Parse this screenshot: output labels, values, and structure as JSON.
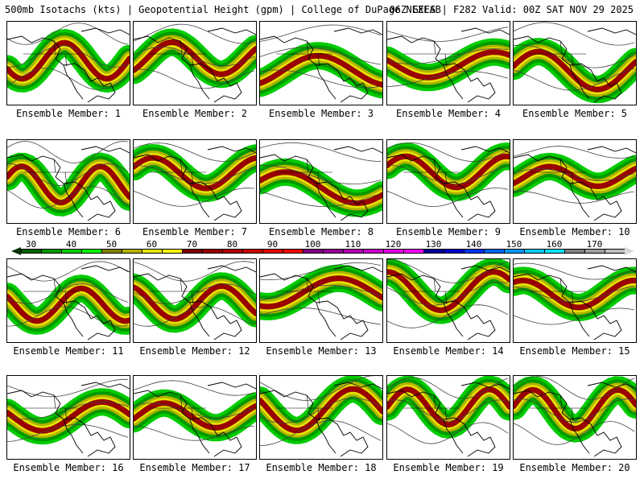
{
  "header": {
    "left_text": "500mb Isotachs (kts) | Geopotential Height (gpm) | College of DuPage NEXLAB",
    "right_text": "06Z GEFS | F282 Valid: 00Z SAT NOV 29 2025"
  },
  "colorbar": {
    "labels": [
      "30",
      "40",
      "50",
      "60",
      "70",
      "80",
      "90",
      "100",
      "110",
      "120",
      "130",
      "140",
      "150",
      "160",
      "170"
    ],
    "colors": [
      "#006400",
      "#009900",
      "#00cc00",
      "#00ff00",
      "#808000",
      "#b3b300",
      "#e6e600",
      "#ffff00",
      "#800000",
      "#990000",
      "#b30000",
      "#cc0000",
      "#e60000",
      "#ff0000",
      "#800080",
      "#990099",
      "#b300b3",
      "#cc00cc",
      "#e600e6",
      "#ff00ff",
      "#000099",
      "#0000cc",
      "#0033ff",
      "#0066ff",
      "#0099ff",
      "#00ccff",
      "#00e6ff",
      "#808080",
      "#a0a0a0",
      "#c0c0c0"
    ],
    "start_tip_color": "#003300",
    "end_tip_color": "#d8d8d8"
  },
  "members": [
    {
      "label": "Ensemble Member: 1"
    },
    {
      "label": "Ensemble Member: 2"
    },
    {
      "label": "Ensemble Member: 3"
    },
    {
      "label": "Ensemble Member: 4"
    },
    {
      "label": "Ensemble Member: 5"
    },
    {
      "label": "Ensemble Member: 6"
    },
    {
      "label": "Ensemble Member: 7"
    },
    {
      "label": "Ensemble Member: 8"
    },
    {
      "label": "Ensemble Member: 9"
    },
    {
      "label": "Ensemble Member: 10"
    },
    {
      "label": "Ensemble Member: 11"
    },
    {
      "label": "Ensemble Member: 12"
    },
    {
      "label": "Ensemble Member: 13"
    },
    {
      "label": "Ensemble Member: 14"
    },
    {
      "label": "Ensemble Member: 15"
    },
    {
      "label": "Ensemble Member: 16"
    },
    {
      "label": "Ensemble Member: 17"
    },
    {
      "label": "Ensemble Member: 18"
    },
    {
      "label": "Ensemble Member: 19"
    },
    {
      "label": "Ensemble Member: 20"
    }
  ]
}
